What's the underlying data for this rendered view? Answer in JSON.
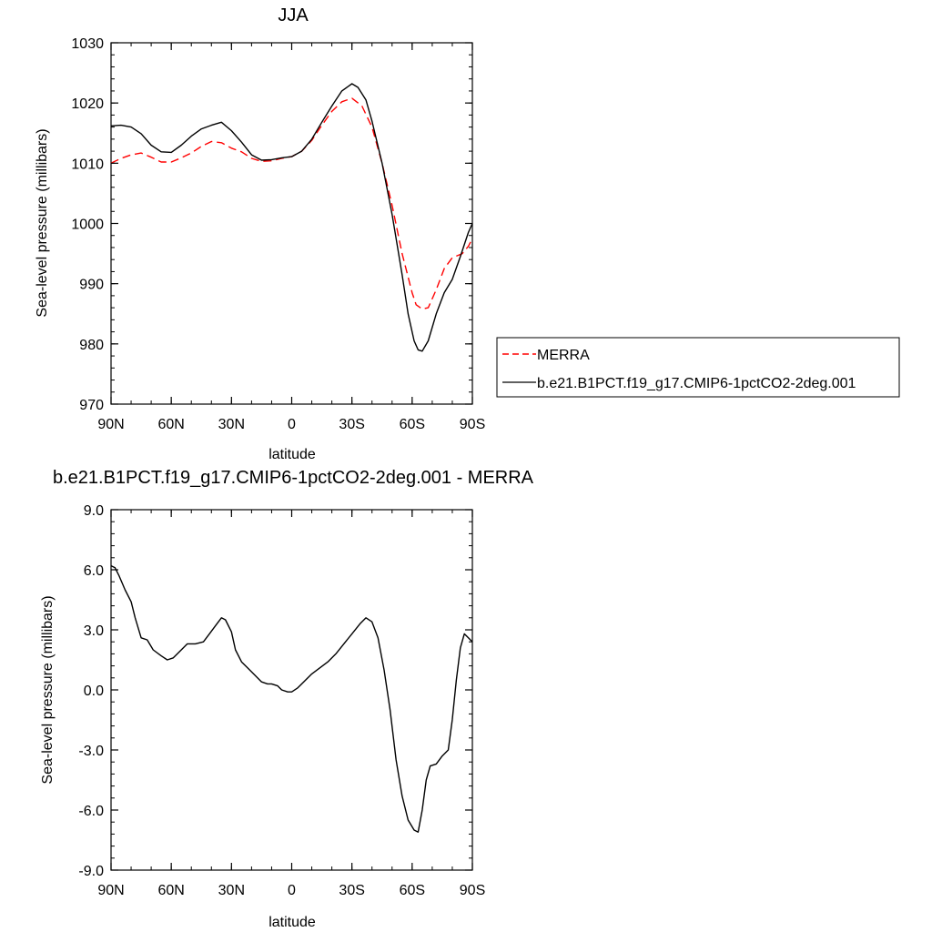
{
  "chart_data": [
    {
      "type": "line",
      "title": "JJA",
      "xlabel": "latitude",
      "ylabel": "Sea-level pressure (millibars)",
      "xlim": [
        -90,
        90
      ],
      "ylim": [
        970,
        1030
      ],
      "x_ticks": [
        {
          "value": -90,
          "label": "90N"
        },
        {
          "value": -60,
          "label": "60N"
        },
        {
          "value": -30,
          "label": "30N"
        },
        {
          "value": 0,
          "label": "0"
        },
        {
          "value": 30,
          "label": "30S"
        },
        {
          "value": 60,
          "label": "60S"
        },
        {
          "value": 90,
          "label": "90S"
        }
      ],
      "y_ticks": [
        {
          "value": 970,
          "label": "970"
        },
        {
          "value": 980,
          "label": "980"
        },
        {
          "value": 990,
          "label": "990"
        },
        {
          "value": 1000,
          "label": "1000"
        },
        {
          "value": 1010,
          "label": "1010"
        },
        {
          "value": 1020,
          "label": "1020"
        },
        {
          "value": 1030,
          "label": "1030"
        }
      ],
      "legend_position": "right",
      "series": [
        {
          "name": "MERRA",
          "color": "#ff0000",
          "dash": "dashed",
          "points": [
            [
              -90,
              1010.0
            ],
            [
              -85,
              1010.8
            ],
            [
              -80,
              1011.4
            ],
            [
              -75,
              1011.7
            ],
            [
              -70,
              1011.0
            ],
            [
              -65,
              1010.2
            ],
            [
              -60,
              1010.2
            ],
            [
              -55,
              1010.9
            ],
            [
              -50,
              1011.7
            ],
            [
              -45,
              1012.8
            ],
            [
              -40,
              1013.6
            ],
            [
              -35,
              1013.4
            ],
            [
              -30,
              1012.5
            ],
            [
              -25,
              1011.9
            ],
            [
              -20,
              1010.8
            ],
            [
              -15,
              1010.3
            ],
            [
              -10,
              1010.4
            ],
            [
              -5,
              1010.8
            ],
            [
              0,
              1011.1
            ],
            [
              5,
              1012.0
            ],
            [
              10,
              1013.8
            ],
            [
              15,
              1016.3
            ],
            [
              20,
              1018.6
            ],
            [
              25,
              1020.2
            ],
            [
              30,
              1020.8
            ],
            [
              35,
              1019.5
            ],
            [
              40,
              1016.0
            ],
            [
              45,
              1010.0
            ],
            [
              50,
              1003.0
            ],
            [
              55,
              995.0
            ],
            [
              60,
              988.5
            ],
            [
              62,
              986.5
            ],
            [
              65,
              985.8
            ],
            [
              68,
              986.0
            ],
            [
              72,
              989.0
            ],
            [
              76,
              992.5
            ],
            [
              80,
              994.3
            ],
            [
              85,
              995.0
            ],
            [
              88,
              996.2
            ],
            [
              90,
              997.5
            ]
          ]
        },
        {
          "name": "b.e21.B1PCT.f19_g17.CMIP6-1pctCO2-2deg.001",
          "color": "#000000",
          "dash": "solid",
          "points": [
            [
              -90,
              1016.2
            ],
            [
              -85,
              1016.3
            ],
            [
              -80,
              1016.0
            ],
            [
              -75,
              1014.9
            ],
            [
              -70,
              1013.0
            ],
            [
              -65,
              1011.9
            ],
            [
              -60,
              1011.8
            ],
            [
              -55,
              1013.0
            ],
            [
              -50,
              1014.5
            ],
            [
              -45,
              1015.7
            ],
            [
              -40,
              1016.3
            ],
            [
              -35,
              1016.8
            ],
            [
              -30,
              1015.4
            ],
            [
              -25,
              1013.5
            ],
            [
              -20,
              1011.4
            ],
            [
              -15,
              1010.5
            ],
            [
              -10,
              1010.6
            ],
            [
              -5,
              1010.9
            ],
            [
              0,
              1011.1
            ],
            [
              5,
              1012.0
            ],
            [
              10,
              1014.0
            ],
            [
              15,
              1016.8
            ],
            [
              20,
              1019.5
            ],
            [
              25,
              1022.0
            ],
            [
              30,
              1023.2
            ],
            [
              33,
              1022.6
            ],
            [
              37,
              1020.5
            ],
            [
              40,
              1017.0
            ],
            [
              45,
              1010.0
            ],
            [
              50,
              1001.5
            ],
            [
              55,
              991.5
            ],
            [
              58,
              985.0
            ],
            [
              61,
              980.5
            ],
            [
              63,
              979.0
            ],
            [
              65,
              978.8
            ],
            [
              68,
              980.5
            ],
            [
              72,
              985.0
            ],
            [
              76,
              988.5
            ],
            [
              80,
              990.7
            ],
            [
              84,
              994.5
            ],
            [
              88,
              998.5
            ],
            [
              90,
              1000.0
            ]
          ]
        }
      ]
    },
    {
      "type": "line",
      "title": "b.e21.B1PCT.f19_g17.CMIP6-1pctCO2-2deg.001 - MERRA",
      "xlabel": "latitude",
      "ylabel": "Sea-level pressure (millibars)",
      "xlim": [
        -90,
        90
      ],
      "ylim": [
        -9.0,
        9.0
      ],
      "x_ticks": [
        {
          "value": -90,
          "label": "90N"
        },
        {
          "value": -60,
          "label": "60N"
        },
        {
          "value": -30,
          "label": "30N"
        },
        {
          "value": 0,
          "label": "0"
        },
        {
          "value": 30,
          "label": "30S"
        },
        {
          "value": 60,
          "label": "60S"
        },
        {
          "value": 90,
          "label": "90S"
        }
      ],
      "y_ticks": [
        {
          "value": -9.0,
          "label": "-9.0"
        },
        {
          "value": -6.0,
          "label": "-6.0"
        },
        {
          "value": -3.0,
          "label": "-3.0"
        },
        {
          "value": 0.0,
          "label": "0.0"
        },
        {
          "value": 3.0,
          "label": "3.0"
        },
        {
          "value": 6.0,
          "label": "6.0"
        },
        {
          "value": 9.0,
          "label": "9.0"
        }
      ],
      "series": [
        {
          "color": "#000000",
          "dash": "solid",
          "points": [
            [
              -90,
              6.2
            ],
            [
              -88,
              6.1
            ],
            [
              -86,
              5.7
            ],
            [
              -83,
              5.0
            ],
            [
              -80,
              4.4
            ],
            [
              -78,
              3.6
            ],
            [
              -75,
              2.6
            ],
            [
              -72,
              2.5
            ],
            [
              -69,
              2.0
            ],
            [
              -65,
              1.7
            ],
            [
              -62,
              1.5
            ],
            [
              -59,
              1.6
            ],
            [
              -55,
              2.0
            ],
            [
              -52,
              2.3
            ],
            [
              -48,
              2.3
            ],
            [
              -44,
              2.4
            ],
            [
              -41,
              2.8
            ],
            [
              -38,
              3.2
            ],
            [
              -35,
              3.6
            ],
            [
              -33,
              3.5
            ],
            [
              -30,
              2.9
            ],
            [
              -28,
              2.0
            ],
            [
              -25,
              1.4
            ],
            [
              -22,
              1.1
            ],
            [
              -19,
              0.8
            ],
            [
              -15,
              0.4
            ],
            [
              -12,
              0.3
            ],
            [
              -10,
              0.3
            ],
            [
              -7,
              0.2
            ],
            [
              -5,
              0.0
            ],
            [
              -2,
              -0.1
            ],
            [
              0,
              -0.1
            ],
            [
              3,
              0.1
            ],
            [
              6,
              0.4
            ],
            [
              10,
              0.8
            ],
            [
              14,
              1.1
            ],
            [
              18,
              1.4
            ],
            [
              22,
              1.8
            ],
            [
              26,
              2.3
            ],
            [
              30,
              2.8
            ],
            [
              34,
              3.3
            ],
            [
              37,
              3.6
            ],
            [
              40,
              3.4
            ],
            [
              43,
              2.6
            ],
            [
              46,
              1.0
            ],
            [
              49,
              -1.0
            ],
            [
              52,
              -3.5
            ],
            [
              55,
              -5.3
            ],
            [
              58,
              -6.5
            ],
            [
              61,
              -7.0
            ],
            [
              63,
              -7.1
            ],
            [
              65,
              -6.0
            ],
            [
              67,
              -4.5
            ],
            [
              69,
              -3.8
            ],
            [
              72,
              -3.7
            ],
            [
              75,
              -3.3
            ],
            [
              78,
              -3.0
            ],
            [
              80,
              -1.5
            ],
            [
              82,
              0.5
            ],
            [
              84,
              2.1
            ],
            [
              86,
              2.8
            ],
            [
              88,
              2.6
            ],
            [
              90,
              2.4
            ]
          ]
        }
      ]
    }
  ]
}
